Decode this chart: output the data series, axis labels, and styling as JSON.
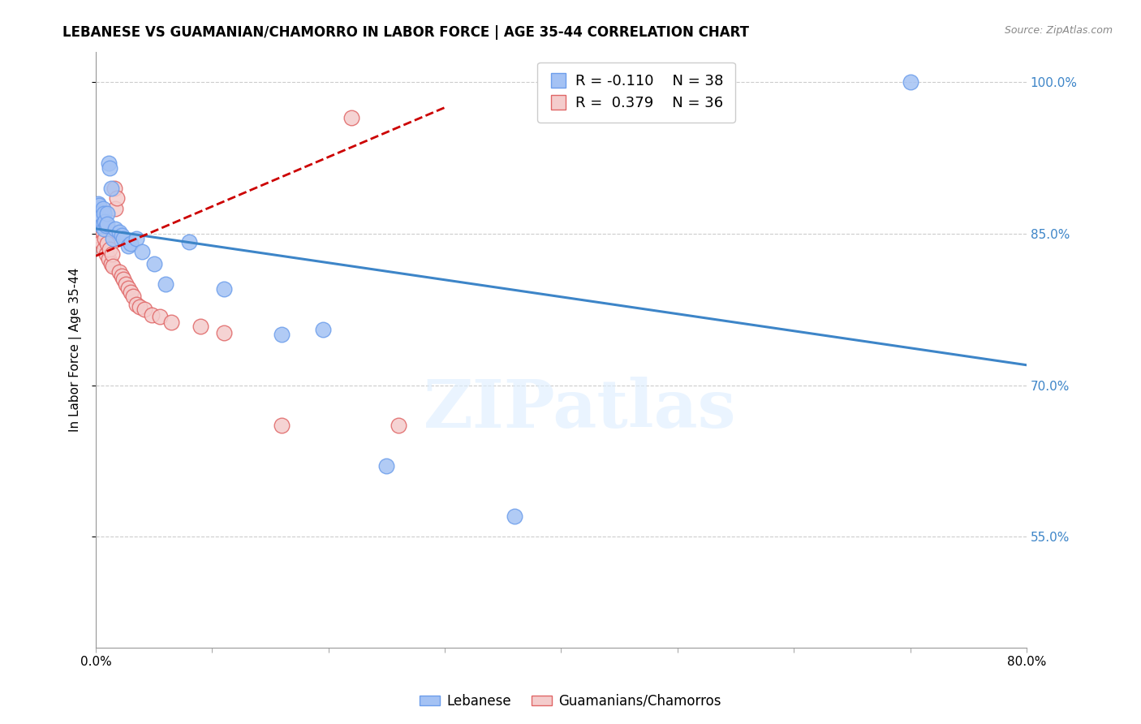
{
  "title": "LEBANESE VS GUAMANIAN/CHAMORRO IN LABOR FORCE | AGE 35-44 CORRELATION CHART",
  "source": "Source: ZipAtlas.com",
  "ylabel": "In Labor Force | Age 35-44",
  "xlim": [
    0.0,
    0.8
  ],
  "ylim": [
    0.44,
    1.03
  ],
  "yticks": [
    0.55,
    0.7,
    0.85,
    1.0
  ],
  "ytick_labels": [
    "55.0%",
    "70.0%",
    "85.0%",
    "100.0%"
  ],
  "legend_r_blue": "-0.110",
  "legend_n_blue": "38",
  "legend_r_pink": "0.379",
  "legend_n_pink": "36",
  "legend_label_blue": "Lebanese",
  "legend_label_pink": "Guamanians/Chamorros",
  "blue_color": "#a4c2f4",
  "pink_color": "#f4cccc",
  "blue_edge_color": "#6d9eeb",
  "pink_edge_color": "#e06666",
  "blue_line_color": "#3d85c8",
  "pink_line_color": "#cc0000",
  "watermark_text": "ZIPatlas",
  "blue_scatter_x": [
    0.001,
    0.002,
    0.002,
    0.003,
    0.003,
    0.004,
    0.004,
    0.005,
    0.005,
    0.006,
    0.006,
    0.007,
    0.007,
    0.008,
    0.009,
    0.01,
    0.01,
    0.011,
    0.012,
    0.013,
    0.015,
    0.017,
    0.02,
    0.022,
    0.024,
    0.028,
    0.03,
    0.035,
    0.04,
    0.05,
    0.06,
    0.08,
    0.11,
    0.16,
    0.195,
    0.25,
    0.36,
    0.7
  ],
  "blue_scatter_y": [
    0.875,
    0.88,
    0.872,
    0.878,
    0.865,
    0.87,
    0.862,
    0.868,
    0.858,
    0.875,
    0.86,
    0.87,
    0.855,
    0.862,
    0.858,
    0.87,
    0.86,
    0.92,
    0.915,
    0.895,
    0.845,
    0.855,
    0.852,
    0.848,
    0.845,
    0.838,
    0.84,
    0.845,
    0.832,
    0.82,
    0.8,
    0.842,
    0.795,
    0.75,
    0.755,
    0.62,
    0.57,
    1.0
  ],
  "pink_scatter_x": [
    0.001,
    0.002,
    0.003,
    0.004,
    0.005,
    0.006,
    0.007,
    0.008,
    0.009,
    0.01,
    0.011,
    0.012,
    0.013,
    0.014,
    0.015,
    0.016,
    0.017,
    0.018,
    0.02,
    0.022,
    0.024,
    0.026,
    0.028,
    0.03,
    0.032,
    0.035,
    0.038,
    0.042,
    0.048,
    0.055,
    0.065,
    0.09,
    0.11,
    0.16,
    0.22,
    0.26
  ],
  "pink_scatter_y": [
    0.862,
    0.855,
    0.848,
    0.858,
    0.842,
    0.852,
    0.835,
    0.845,
    0.83,
    0.84,
    0.825,
    0.835,
    0.82,
    0.83,
    0.818,
    0.895,
    0.875,
    0.885,
    0.812,
    0.808,
    0.805,
    0.8,
    0.796,
    0.792,
    0.788,
    0.78,
    0.778,
    0.775,
    0.77,
    0.768,
    0.762,
    0.758,
    0.752,
    0.66,
    0.965,
    0.66
  ],
  "blue_trend_x": [
    0.0,
    0.8
  ],
  "blue_trend_y": [
    0.855,
    0.72
  ],
  "pink_trend_x": [
    0.0,
    0.3
  ],
  "pink_trend_y": [
    0.828,
    0.975
  ]
}
